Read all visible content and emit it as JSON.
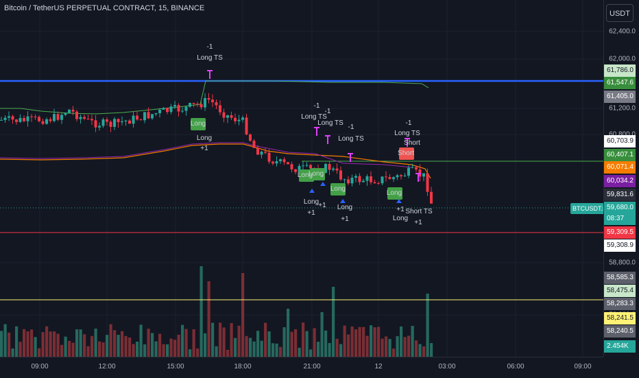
{
  "header": {
    "title": "Bitcoin / TetherUS PERPETUAL CONTRACT, 15, BINANCE",
    "currency_button": "USDT"
  },
  "price_axis": {
    "ticks": [
      "62,400.0",
      "62,000.0",
      "61,200.0",
      "60,800.0",
      "58,800.0",
      "58,000.0"
    ]
  },
  "price_tags": [
    {
      "label": "61,786.0",
      "bg": "#c8e6c9",
      "fg": "#131722"
    },
    {
      "label": "61,547.6",
      "bg": "#388e3c",
      "fg": "#ffffff"
    },
    {
      "label": "61,405.0",
      "bg": "#787b86",
      "fg": "#ffffff"
    },
    {
      "label": "60,703.9",
      "bg": "#ffffff",
      "fg": "#131722"
    },
    {
      "label": "60,407.1",
      "bg": "#388e3c",
      "fg": "#ffffff"
    },
    {
      "label": "60,071.4",
      "bg": "#f57c00",
      "fg": "#ffffff"
    },
    {
      "label": "60,034.2",
      "bg": "#7b1fa2",
      "fg": "#ffffff"
    },
    {
      "label": "59,831.6",
      "bg": "#2a2e39",
      "fg": "#ffffff"
    },
    {
      "label": "59,680.0",
      "bg": "#26a69a",
      "fg": "#ffffff"
    },
    {
      "label": "08:37",
      "bg": "#26a69a",
      "fg": "#ffffff"
    },
    {
      "label": "59,309.5",
      "bg": "#f23645",
      "fg": "#ffffff"
    },
    {
      "label": "59,308.9",
      "bg": "#ffffff",
      "fg": "#131722"
    },
    {
      "label": "58,585.3",
      "bg": "#5d606b",
      "fg": "#ffffff"
    },
    {
      "label": "58,475.4",
      "bg": "#c8e6c9",
      "fg": "#131722"
    },
    {
      "label": "58,283.3",
      "bg": "#5d606b",
      "fg": "#ffffff"
    },
    {
      "label": "58,241.5",
      "bg": "#fff176",
      "fg": "#131722"
    },
    {
      "label": "58,240.5",
      "bg": "#5d606b",
      "fg": "#ffffff"
    },
    {
      "label": "2.454K",
      "bg": "#26a69a",
      "fg": "#ffffff"
    }
  ],
  "symbol_tag": "BTCUSDT.P",
  "time_axis": [
    "09:00",
    "12:00",
    "15:00",
    "18:00",
    "21:00",
    "12",
    "03:00",
    "06:00",
    "09:00"
  ],
  "annotations": [
    {
      "text": "-1"
    },
    {
      "text": "Long TS"
    },
    {
      "text": "Long"
    },
    {
      "text": "Long"
    },
    {
      "text": "+1"
    },
    {
      "text": "-1"
    },
    {
      "text": "-1"
    },
    {
      "text": "Long TS"
    },
    {
      "text": "Long TS"
    },
    {
      "text": "-1"
    },
    {
      "text": "Long TS"
    },
    {
      "text": "Long"
    },
    {
      "text": "Long"
    },
    {
      "text": "Long"
    },
    {
      "text": "Long"
    },
    {
      "text": "+1"
    },
    {
      "text": "+1"
    },
    {
      "text": "Long"
    },
    {
      "text": "+1"
    },
    {
      "text": "-1"
    },
    {
      "text": "Long TS"
    },
    {
      "text": "Short"
    },
    {
      "text": "Short"
    },
    {
      "text": "Long"
    },
    {
      "text": "Long"
    },
    {
      "text": "+1"
    },
    {
      "text": "Short TS"
    },
    {
      "text": "+1"
    }
  ],
  "colors": {
    "up": "#26a69a",
    "down": "#f23645",
    "vol_up": "#26695f",
    "vol_down": "#7a2e34",
    "blue_line": "#2962ff",
    "green_line": "#4caf50",
    "orange_line": "#f57c00",
    "red_hline": "#f23645",
    "yellow_hline": "#fff176",
    "magenta": "#e040fb"
  }
}
